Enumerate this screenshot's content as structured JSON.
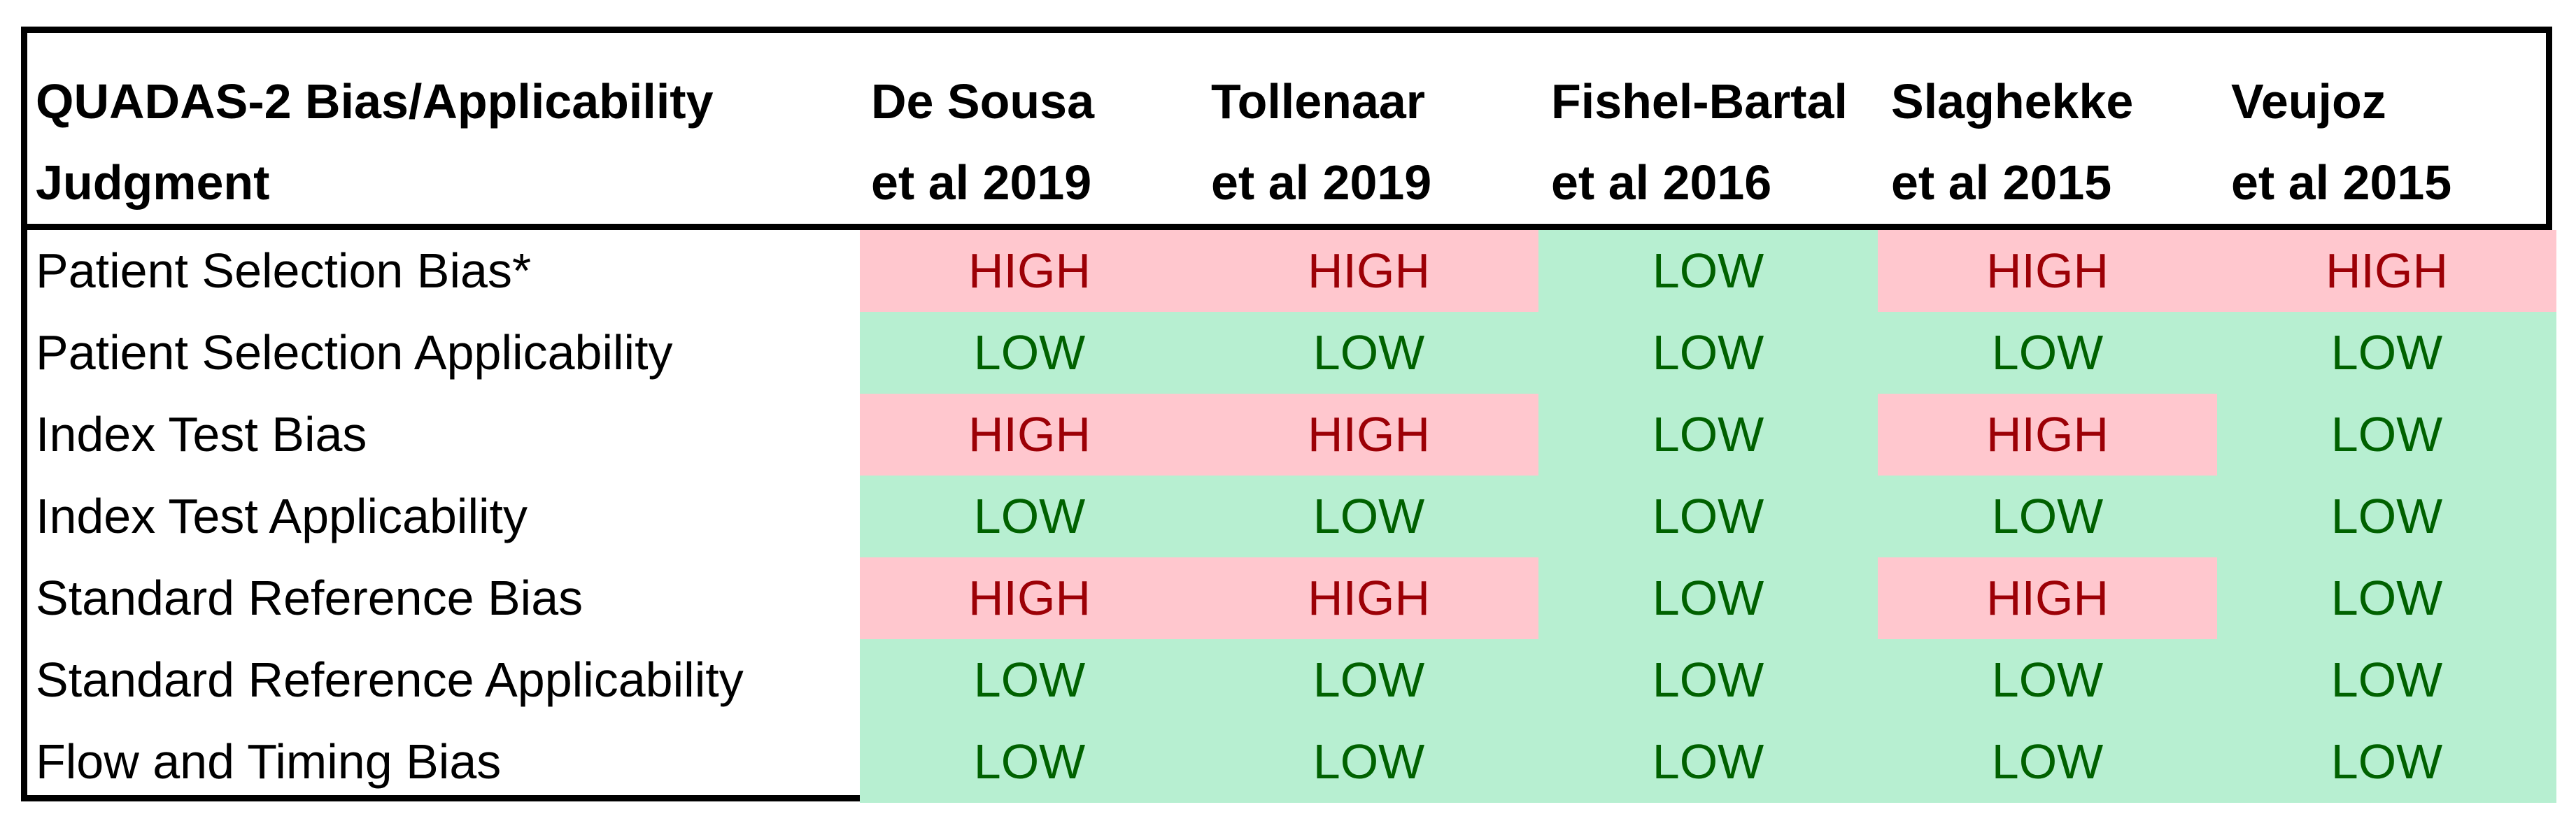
{
  "table": {
    "header": {
      "judgment_line1": "QUADAS-2 Bias/Applicability",
      "judgment_line2": "Judgment",
      "studies": [
        {
          "line1": "De Sousa",
          "line2": "et al 2019"
        },
        {
          "line1": "Tollenaar",
          "line2": "et al 2019"
        },
        {
          "line1": "Fishel-Bartal",
          "line2": "et al 2016"
        },
        {
          "line1": "Slaghekke",
          "line2": "et al 2015"
        },
        {
          "line1": "Veujoz",
          "line2": "et al 2015"
        }
      ]
    },
    "rows": [
      {
        "label": "Patient Selection Bias*",
        "values": [
          "HIGH",
          "HIGH",
          "LOW",
          "HIGH",
          "HIGH"
        ]
      },
      {
        "label": "Patient Selection Applicability",
        "values": [
          "LOW",
          "LOW",
          "LOW",
          "LOW",
          "LOW"
        ]
      },
      {
        "label": "Index Test Bias",
        "values": [
          "HIGH",
          "HIGH",
          "LOW",
          "HIGH",
          "LOW"
        ]
      },
      {
        "label": "Index Test Applicability",
        "values": [
          "LOW",
          "LOW",
          "LOW",
          "LOW",
          "LOW"
        ]
      },
      {
        "label": "Standard Reference Bias",
        "values": [
          "HIGH",
          "HIGH",
          "LOW",
          "HIGH",
          "LOW"
        ]
      },
      {
        "label": "Standard Reference Applicability",
        "values": [
          "LOW",
          "LOW",
          "LOW",
          "LOW",
          "LOW"
        ]
      },
      {
        "label": "Flow and Timing Bias",
        "values": [
          "LOW",
          "LOW",
          "LOW",
          "LOW",
          "LOW"
        ]
      }
    ],
    "colors": {
      "high_fill": "#ffc7ce",
      "high_text": "#9c0006",
      "low_fill": "#b7efd1",
      "low_text": "#006100"
    }
  }
}
